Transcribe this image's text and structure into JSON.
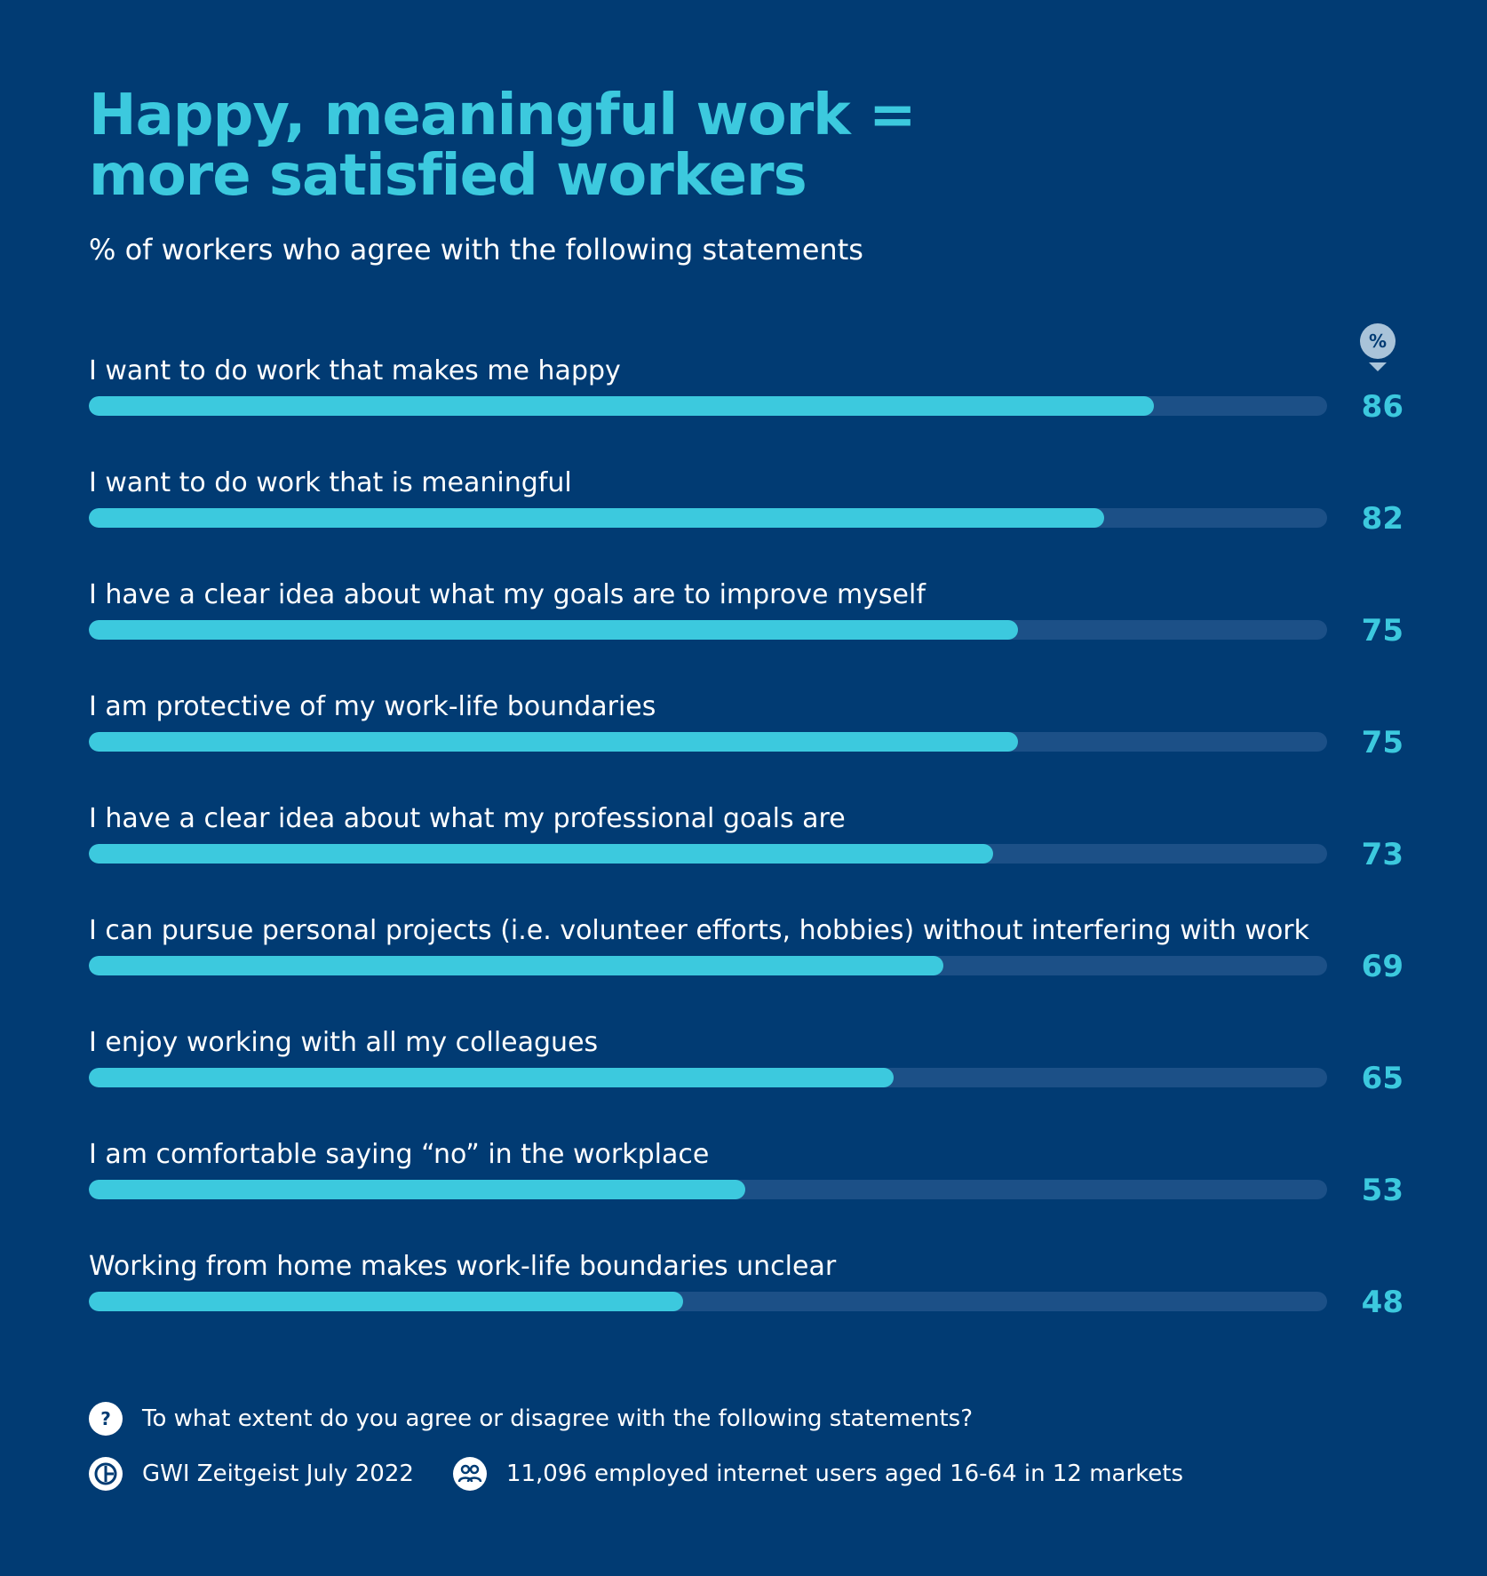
{
  "header": {
    "title_line1": "Happy, meaningful work =",
    "title_line2": "more satisfied workers",
    "subtitle": "% of workers who agree with the following statements"
  },
  "unit_badge": "%",
  "colors": {
    "background": "#013b73",
    "accent": "#3cc9de",
    "track": "#1c5087"
  },
  "chart_data": {
    "type": "bar",
    "orientation": "horizontal",
    "title": "Happy, meaningful work = more satisfied workers",
    "subtitle": "% of workers who agree with the following statements",
    "unit": "%",
    "xlim": [
      0,
      100
    ],
    "categories": [
      "I want to do work that makes me happy",
      "I want to do work that is meaningful",
      "I have a clear idea about what my goals are to improve myself",
      "I am protective of my work-life boundaries",
      "I have a clear idea about what my professional goals are",
      "I can pursue personal projects (i.e. volunteer efforts, hobbies) without interfering with work",
      "I enjoy working with all my colleagues",
      "I am comfortable saying “no” in the workplace",
      "Working from home makes work-life boundaries unclear"
    ],
    "values": [
      86,
      82,
      75,
      75,
      73,
      69,
      65,
      53,
      48
    ]
  },
  "footer": {
    "question_icon": "question-icon",
    "question": "To what extent do you agree or disagree with the following statements?",
    "source_icon": "gwi-logo-icon",
    "source": "GWI Zeitgeist July 2022",
    "audience_icon": "people-icon",
    "audience": "11,096 employed internet users aged 16-64 in 12 markets"
  }
}
